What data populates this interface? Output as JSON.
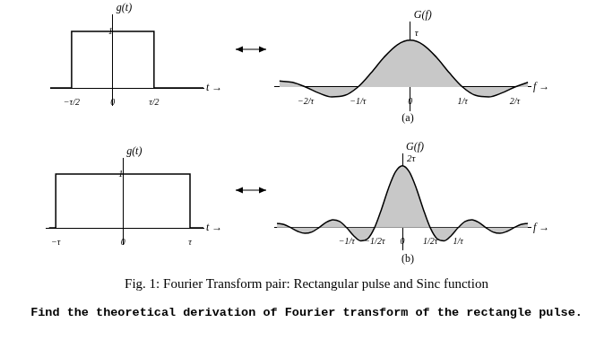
{
  "chart_data": [
    {
      "type": "line",
      "xlabel": "t →",
      "ylabel": "g(t)",
      "x": [
        -0.76,
        -0.5,
        -0.5,
        0.5,
        0.5,
        1.1
      ],
      "values": [
        0,
        0,
        1,
        1,
        0,
        0
      ],
      "color": "#000000",
      "xlim": [
        -0.76,
        1.1
      ],
      "ylim": [
        -0.3,
        1.3
      ],
      "xticks": [
        {
          "value": -0.5,
          "label": "−τ/2"
        },
        0,
        {
          "value": 0.5,
          "label": "τ/2"
        }
      ],
      "yticks": [
        1
      ],
      "grid": false
    },
    {
      "type": "area",
      "xlabel": "f →",
      "ylabel": "G(f)",
      "x": [
        -2.5,
        -2.25,
        -2,
        -1.75,
        -1.5,
        -1.25,
        -1,
        -0.75,
        -0.5,
        -0.25,
        0,
        0.25,
        0.5,
        0.75,
        1,
        1.25,
        1.5,
        1.75,
        2,
        2.25
      ],
      "values": [
        0.127,
        0.1,
        0,
        -0.129,
        -0.212,
        -0.18,
        0,
        0.3,
        0.637,
        0.9,
        1,
        0.9,
        0.637,
        0.3,
        0,
        -0.18,
        -0.212,
        -0.129,
        0,
        0.1
      ],
      "color": "#c8c8c8",
      "xlim": [
        -2.6,
        2.3
      ],
      "ylim": [
        -0.5,
        1.4
      ],
      "xticks": [
        {
          "value": -2,
          "label": "−2/τ"
        },
        {
          "value": -1,
          "label": "−1/τ"
        },
        0,
        {
          "value": 1,
          "label": "1/τ"
        },
        {
          "value": 2,
          "label": "2/τ"
        }
      ],
      "yticks": [],
      "tick_labels": "x",
      "grid": false,
      "annotations": [
        {
          "x": 0,
          "y": 1,
          "text": "τ"
        }
      ]
    },
    {
      "type": "line",
      "xlabel": "t →",
      "ylabel": "g(t)",
      "x": [
        -1.1,
        -1,
        -1,
        1,
        1,
        1.2
      ],
      "values": [
        0,
        0,
        1,
        1,
        0,
        0
      ],
      "color": "#000000",
      "xlim": [
        -1.15,
        1.2
      ],
      "ylim": [
        -0.3,
        1.3
      ],
      "xticks": [
        {
          "value": -1,
          "label": "−τ"
        },
        0,
        {
          "value": 1,
          "label": "τ"
        }
      ],
      "yticks": [
        1
      ],
      "grid": false
    },
    {
      "type": "area",
      "xlabel": "f →",
      "ylabel": "G(f)",
      "x": [
        -2.25,
        -2.125,
        -2,
        -1.875,
        -1.75,
        -1.625,
        -1.5,
        -1.375,
        -1.25,
        -1.125,
        -1,
        -0.875,
        -0.75,
        -0.625,
        -0.5,
        -0.375,
        -0.25,
        -0.125,
        0,
        0.125,
        0.25,
        0.375,
        0.5,
        0.625,
        0.75,
        0.875,
        1,
        1.125,
        1.25,
        1.375,
        1.5,
        1.625,
        1.75,
        1.875,
        2,
        2.125,
        2.25
      ],
      "values": [
        0.141,
        0.106,
        0,
        -0.12,
        -0.182,
        -0.139,
        0,
        0.164,
        0.255,
        0.2,
        0,
        -0.257,
        -0.424,
        -0.36,
        0,
        0.6,
        1.273,
        1.8,
        2,
        1.8,
        1.273,
        0.6,
        0,
        -0.36,
        -0.424,
        -0.257,
        0,
        0.2,
        0.255,
        0.164,
        0,
        -0.139,
        -0.182,
        -0.12,
        0,
        0.106,
        0.141
      ],
      "color": "#c8c8c8",
      "xlim": [
        -2.3,
        2.3
      ],
      "ylim": [
        -0.7,
        2.4
      ],
      "xticks": [
        {
          "value": -1,
          "label": "−1/τ"
        },
        {
          "value": -0.5,
          "label": "−1/2τ"
        },
        0,
        {
          "value": 0.5,
          "label": "1/2τ"
        },
        {
          "value": 1,
          "label": "1/τ"
        }
      ],
      "yticks": [],
      "tick_labels": "x",
      "grid": false,
      "annotations": [
        {
          "x": 0,
          "y": 2,
          "text": "2τ"
        }
      ]
    }
  ],
  "panel_labels": [
    "(a)",
    "(b)"
  ],
  "caption": "Fig. 1: Fourier Transform pair: Rectangular pulse and Sinc function",
  "question": "Find the theoretical derivation of Fourier transform of the rectangle pulse."
}
